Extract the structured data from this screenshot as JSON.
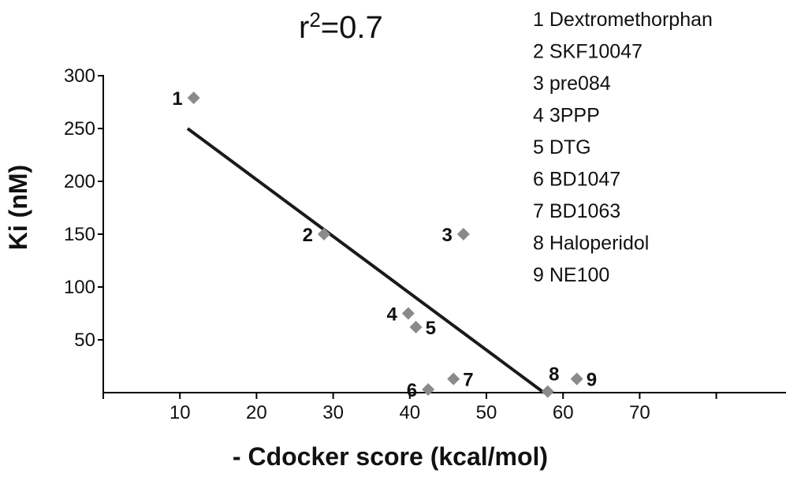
{
  "chart_data": {
    "type": "scatter",
    "title": "r²=0.7",
    "title_base": "r",
    "title_sup": "2",
    "title_rest": "=0.7",
    "xlabel": "- Cdocker score (kcal/mol)",
    "ylabel": "Ki (nM)",
    "xlim": [
      0,
      80
    ],
    "ylim": [
      0,
      300
    ],
    "x_ticks": [
      10,
      20,
      30,
      40,
      50,
      60,
      70
    ],
    "y_ticks": [
      50,
      100,
      150,
      200,
      250,
      300
    ],
    "grid": false,
    "legend_position": "top-right",
    "marker_color": "#8a8a8a",
    "line_color": "#1a1a1a",
    "points": [
      {
        "label": "1",
        "x": 11.8,
        "y": 279,
        "label_side": "left"
      },
      {
        "label": "2",
        "x": 28.8,
        "y": 150,
        "label_side": "left"
      },
      {
        "label": "3",
        "x": 47.0,
        "y": 150,
        "label_side": "left"
      },
      {
        "label": "4",
        "x": 39.8,
        "y": 75,
        "label_side": "left"
      },
      {
        "label": "5",
        "x": 40.8,
        "y": 62,
        "label_side": "right"
      },
      {
        "label": "6",
        "x": 42.4,
        "y": 3,
        "label_side": "left"
      },
      {
        "label": "7",
        "x": 45.7,
        "y": 13,
        "label_side": "right"
      },
      {
        "label": "8",
        "x": 58.0,
        "y": 1,
        "label_side": "top"
      },
      {
        "label": "9",
        "x": 61.8,
        "y": 13,
        "label_side": "right"
      }
    ],
    "trendline": {
      "x": [
        11,
        57.5
      ],
      "y": [
        250,
        0
      ]
    },
    "legend": [
      "1 Dextromethorphan",
      "2 SKF10047",
      "3 pre084",
      "4 3PPP",
      "5 DTG",
      "6 BD1047",
      "7 BD1063",
      "8 Haloperidol",
      "9 NE100"
    ]
  }
}
